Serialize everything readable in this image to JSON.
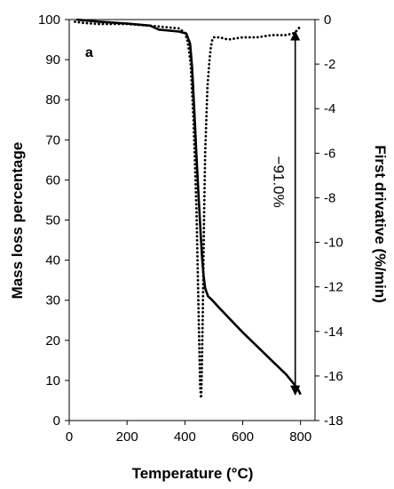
{
  "chart_data": {
    "type": "line",
    "panel_label": "a",
    "xlabel": "Temperature (°C)",
    "ylabel_left": "Mass loss percentage",
    "ylabel_right": "First drivative (%/min)",
    "xlim": [
      0,
      850
    ],
    "ylim_left": [
      0,
      100
    ],
    "ylim_right": [
      -18,
      0
    ],
    "x_ticks": [
      0,
      200,
      400,
      600,
      800
    ],
    "y_left_ticks": [
      0,
      10,
      20,
      30,
      40,
      50,
      60,
      70,
      80,
      90,
      100
    ],
    "y_right_ticks": [
      0,
      -2,
      -4,
      -6,
      -8,
      -10,
      -12,
      -14,
      -16,
      -18
    ],
    "annotation": "−91.0%",
    "annotation_range": [
      97,
      6.5
    ],
    "annotation_x": 800,
    "series": [
      {
        "axis": "left",
        "style": "solid",
        "x": [
          25,
          100,
          200,
          280,
          310,
          380,
          405,
          418,
          425,
          432,
          440,
          448,
          455,
          460,
          465,
          470,
          480,
          495,
          520,
          560,
          600,
          650,
          700,
          750,
          790,
          800
        ],
        "y": [
          100,
          99.5,
          99,
          98.5,
          97.5,
          97,
          96.5,
          94,
          88,
          78,
          66,
          55,
          46,
          40,
          36,
          33,
          31,
          30,
          28,
          25,
          22,
          18.5,
          15,
          11.5,
          8,
          6.5
        ]
      },
      {
        "axis": "right",
        "style": "dotted",
        "x": [
          20,
          50,
          100,
          200,
          300,
          380,
          400,
          410,
          420,
          430,
          440,
          448,
          453,
          456,
          458,
          462,
          466,
          470,
          478,
          485,
          490,
          495,
          500,
          520,
          550,
          600,
          650,
          700,
          750,
          780,
          800
        ],
        "y": [
          -0.1,
          -0.15,
          -0.2,
          -0.2,
          -0.3,
          -0.4,
          -0.6,
          -1.0,
          -2.0,
          -4.5,
          -8.5,
          -13.5,
          -16.5,
          -17.0,
          -16.0,
          -13.0,
          -9.0,
          -6.0,
          -3.0,
          -1.8,
          -1.2,
          -0.9,
          -0.8,
          -0.8,
          -0.9,
          -0.8,
          -0.8,
          -0.7,
          -0.7,
          -0.6,
          -0.3
        ]
      }
    ]
  }
}
